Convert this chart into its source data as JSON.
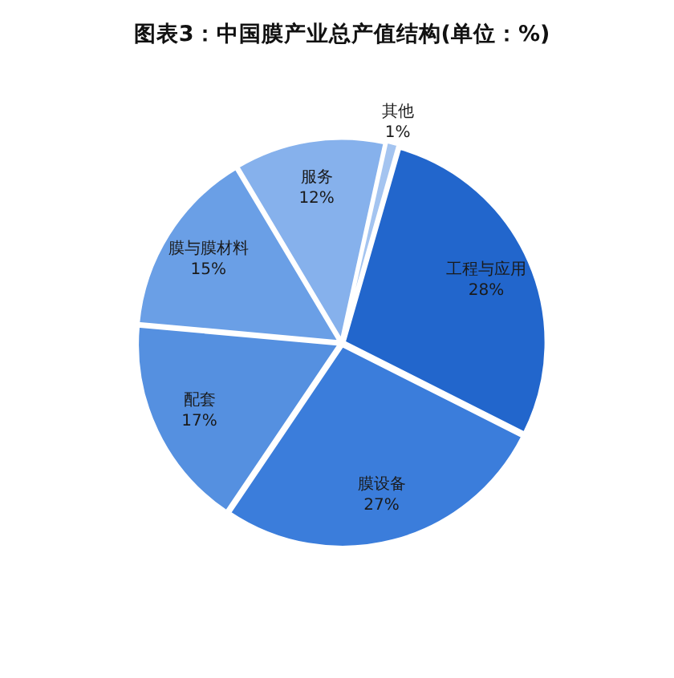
{
  "chart_data": {
    "type": "pie",
    "title": "图表3：中国膜产业总产值结构(单位：%)",
    "categories": [
      "工程与应用",
      "膜设备",
      "配套",
      "膜与膜材料",
      "服务",
      "其他"
    ],
    "values": [
      28,
      27,
      17,
      15,
      12,
      1
    ],
    "value_labels": [
      "28%",
      "27%",
      "17%",
      "15%",
      "12%",
      "1%"
    ],
    "colors": [
      "#2266cc",
      "#3b7ddb",
      "#5590e0",
      "#6a9fe6",
      "#86b1ec",
      "#a4c4f0"
    ]
  }
}
